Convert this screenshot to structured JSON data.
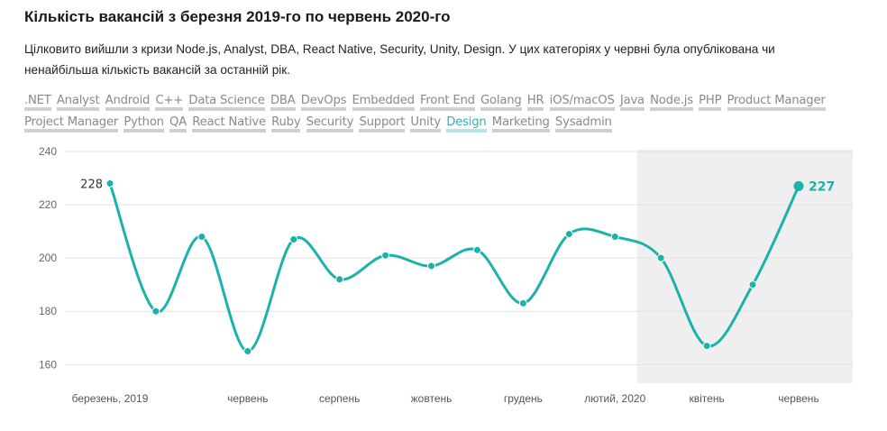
{
  "header": {
    "title": "Кількість вакансій з березня 2019-го по червень 2020-го",
    "subtitle": "Цілковито вийшли з кризи Node.js, Analyst, DBA, React Native, Security, Unity, Design. У цих категоріях у червні була опублікована чи ненайбільша кількість вакансій за останній рік."
  },
  "tags": [
    {
      "label": ".NET",
      "active": false
    },
    {
      "label": "Analyst",
      "active": false
    },
    {
      "label": "Android",
      "active": false
    },
    {
      "label": "C++",
      "active": false
    },
    {
      "label": "Data Science",
      "active": false
    },
    {
      "label": "DBA",
      "active": false
    },
    {
      "label": "DevOps",
      "active": false
    },
    {
      "label": "Embedded",
      "active": false
    },
    {
      "label": "Front End",
      "active": false
    },
    {
      "label": "Golang",
      "active": false
    },
    {
      "label": "HR",
      "active": false
    },
    {
      "label": "iOS/macOS",
      "active": false
    },
    {
      "label": "Java",
      "active": false
    },
    {
      "label": "Node.js",
      "active": false
    },
    {
      "label": "PHP",
      "active": false
    },
    {
      "label": "Product Manager",
      "active": false
    },
    {
      "label": "Project Manager",
      "active": false
    },
    {
      "label": "Python",
      "active": false
    },
    {
      "label": "QA",
      "active": false
    },
    {
      "label": "React Native",
      "active": false
    },
    {
      "label": "Ruby",
      "active": false
    },
    {
      "label": "Security",
      "active": false
    },
    {
      "label": "Support",
      "active": false
    },
    {
      "label": "Unity",
      "active": false
    },
    {
      "label": "Design",
      "active": true
    },
    {
      "label": "Marketing",
      "active": false
    },
    {
      "label": "Sysadmin",
      "active": false
    }
  ],
  "colors": {
    "line": "#1ab2ab",
    "highlight_band": "#efefef",
    "grid": "#e2e2e2",
    "active_tag": "#33b1b1"
  },
  "chart_data": {
    "type": "line",
    "series": [
      {
        "values": [
          228,
          180,
          208,
          165,
          207,
          192,
          201,
          197,
          203,
          183,
          209,
          208,
          200,
          167,
          190,
          227
        ]
      }
    ],
    "x": [
      "2019-03",
      "2019-04",
      "2019-05",
      "2019-06",
      "2019-07",
      "2019-08",
      "2019-09",
      "2019-10",
      "2019-11",
      "2019-12",
      "2020-01",
      "2020-02",
      "2020-03",
      "2020-04",
      "2020-05",
      "2020-06"
    ],
    "x_tick_labels": [
      {
        "month": "2019-03",
        "label": "березень, 2019"
      },
      {
        "month": "2019-06",
        "label": "червень"
      },
      {
        "month": "2019-08",
        "label": "серпень"
      },
      {
        "month": "2019-10",
        "label": "жовтень"
      },
      {
        "month": "2019-12",
        "label": "грудень"
      },
      {
        "month": "2020-02",
        "label": "лютий, 2020"
      },
      {
        "month": "2020-04",
        "label": "квітень"
      },
      {
        "month": "2020-06",
        "label": "червень"
      }
    ],
    "yticks": [
      160,
      180,
      200,
      220,
      240
    ],
    "ylim": [
      153,
      240
    ],
    "shaded_range": [
      "2020-03",
      "2020-06"
    ],
    "first_label": "228",
    "last_label": "227",
    "grid": true
  }
}
